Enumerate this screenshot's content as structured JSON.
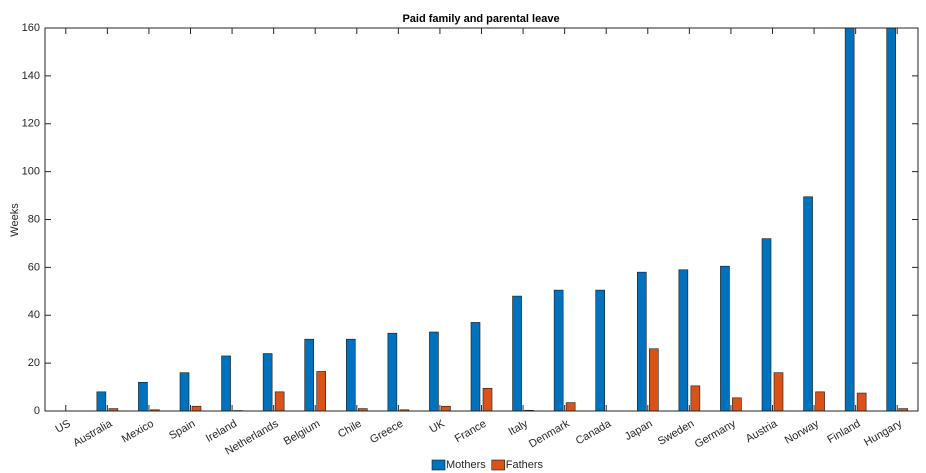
{
  "chart_data": {
    "type": "bar",
    "title": "Paid family and parental leave",
    "y_label": "Weeks",
    "categories": [
      "US",
      "Australia",
      "Mexico",
      "Spain",
      "Ireland",
      "Netherlands",
      "Belgium",
      "Chile",
      "Greece",
      "UK",
      "France",
      "Italy",
      "Denmark",
      "Canada",
      "Japan",
      "Sweden",
      "Germany",
      "Austria",
      "Norway",
      "Finland",
      "Hungary"
    ],
    "series": [
      {
        "name": "Mothers",
        "color": "#0072bd",
        "values": [
          0,
          8,
          12,
          16,
          23,
          24,
          30,
          30,
          32.5,
          33,
          37,
          48,
          50.5,
          50.5,
          58,
          59,
          60.5,
          72,
          89.5,
          161,
          160
        ]
      },
      {
        "name": "Fathers",
        "color": "#d95319",
        "values": [
          0,
          1,
          0.5,
          2,
          0.2,
          8,
          16.5,
          1,
          0.5,
          2,
          9.5,
          0.3,
          3.5,
          0,
          26,
          10.5,
          5.5,
          16,
          8,
          7.5,
          1
        ]
      }
    ],
    "ylim": [
      0,
      160
    ],
    "yticks": [
      0,
      20,
      40,
      60,
      80,
      100,
      120,
      140,
      160
    ],
    "legend": "bottom"
  }
}
